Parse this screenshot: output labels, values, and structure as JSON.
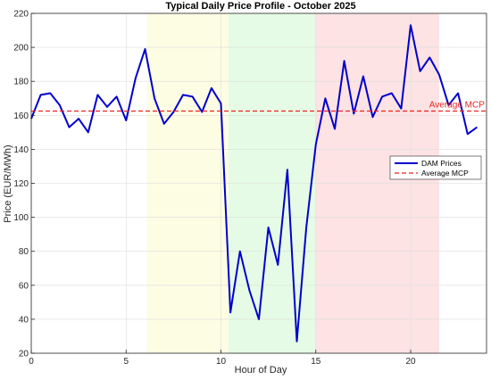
{
  "chart_data": {
    "type": "line",
    "title": "Typical Daily Price Profile - October 2025",
    "xlabel": "Hour of Day",
    "ylabel": "Price (EUR/MWh)",
    "xlim": [
      0,
      24
    ],
    "ylim": [
      20,
      220
    ],
    "xticks": [
      0,
      5,
      10,
      15,
      20
    ],
    "yticks": [
      20,
      40,
      60,
      80,
      100,
      120,
      140,
      160,
      180,
      200,
      220
    ],
    "grid": true,
    "legend_position": "right",
    "shaded_regions": [
      {
        "x_start": 6.1,
        "x_end": 10.4,
        "color": "#fdfde3"
      },
      {
        "x_start": 10.4,
        "x_end": 15.0,
        "color": "#e5fbe5"
      },
      {
        "x_start": 15.0,
        "x_end": 21.5,
        "color": "#fde3e3"
      }
    ],
    "series": [
      {
        "name": "DAM Prices",
        "color": "#0000cc",
        "style": "solid",
        "x": [
          0,
          0.5,
          1,
          1.5,
          2,
          2.5,
          3,
          3.5,
          4,
          4.5,
          5,
          5.5,
          6,
          6.5,
          7,
          7.5,
          8,
          8.5,
          9,
          9.5,
          10,
          10.5,
          11,
          11.5,
          12,
          12.5,
          13,
          13.5,
          14,
          14.5,
          15,
          15.5,
          16,
          16.5,
          17,
          17.5,
          18,
          18.5,
          19,
          19.5,
          20,
          20.5,
          21,
          21.5,
          22,
          22.5,
          23,
          23.5
        ],
        "values": [
          158,
          172,
          173,
          166,
          153,
          158,
          150,
          172,
          165,
          171,
          157,
          182,
          199,
          170,
          155,
          162,
          172,
          171,
          162,
          176,
          167,
          44,
          80,
          57,
          40,
          94,
          72,
          128,
          27,
          94,
          143,
          170,
          152,
          192,
          161,
          183,
          159,
          171,
          173,
          164,
          213,
          186,
          194,
          184,
          166,
          173,
          149,
          153
        ]
      },
      {
        "name": "Average MCP",
        "color": "#ee2222",
        "style": "dashed",
        "x": [
          0,
          24
        ],
        "values": [
          162.5,
          162.5
        ]
      }
    ],
    "annotations": [
      {
        "text": "Average MCP",
        "x": 23.9,
        "y": 162.5,
        "color": "#ee2222"
      }
    ]
  }
}
